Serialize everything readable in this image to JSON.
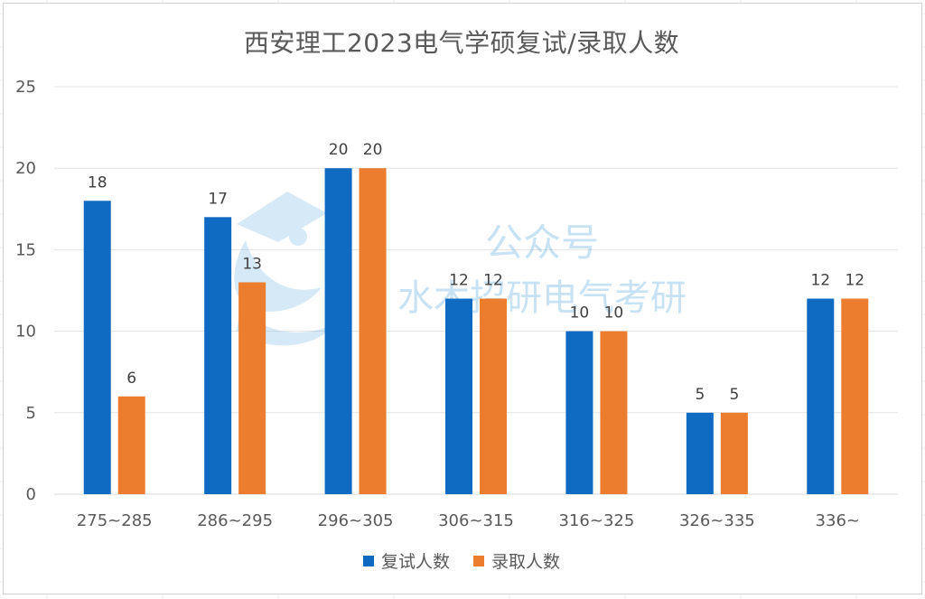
{
  "chart_data": {
    "type": "bar",
    "title": "西安理工2023电气学硕复试/录取人数",
    "categories": [
      "275~285",
      "286~295",
      "296~305",
      "306~315",
      "316~325",
      "326~335",
      "336~"
    ],
    "series": [
      {
        "name": "复试人数",
        "values": [
          18,
          17,
          20,
          12,
          10,
          5,
          12
        ],
        "color": "#0F6BC1"
      },
      {
        "name": "录取人数",
        "values": [
          6,
          13,
          20,
          12,
          10,
          5,
          12
        ],
        "color": "#EC7D2F"
      }
    ],
    "ylim": [
      0,
      25
    ],
    "yticks": [
      0,
      5,
      10,
      15,
      20,
      25
    ],
    "grid": true,
    "legend_position": "bottom",
    "data_labels": true
  },
  "watermark": {
    "line1": "公众号",
    "line2": "水木招研电气考研"
  }
}
